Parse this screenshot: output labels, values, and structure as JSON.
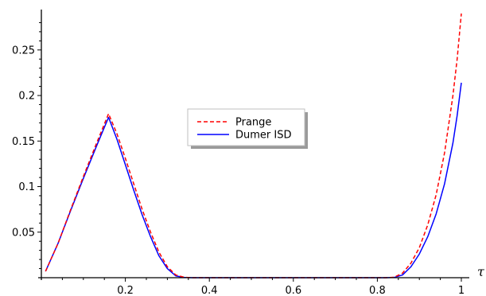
{
  "chart_data": {
    "type": "line",
    "title": "",
    "xlabel": "τ",
    "ylabel": "",
    "xlim": [
      0,
      1
    ],
    "ylim": [
      0,
      0.29
    ],
    "x_ticks": [
      0.2,
      0.4,
      0.6,
      0.8,
      1
    ],
    "x_tick_labels": [
      "0.2",
      "0.4",
      "0.6",
      "0.8",
      "1"
    ],
    "y_ticks": [
      0.05,
      0.1,
      0.15,
      0.2,
      0.25
    ],
    "y_tick_labels": [
      "0.05",
      "0.1",
      "0.15",
      "0.2",
      "0.25"
    ],
    "grid": false,
    "legend_position": "center",
    "series": [
      {
        "name": "Prange",
        "color": "#ff0000",
        "style": "dashed",
        "points": [
          [
            0.01,
            0.007
          ],
          [
            0.04,
            0.038
          ],
          [
            0.07,
            0.075
          ],
          [
            0.1,
            0.111
          ],
          [
            0.13,
            0.146
          ],
          [
            0.16,
            0.18
          ],
          [
            0.18,
            0.158
          ],
          [
            0.2,
            0.131
          ],
          [
            0.22,
            0.103
          ],
          [
            0.24,
            0.075
          ],
          [
            0.26,
            0.05
          ],
          [
            0.28,
            0.028
          ],
          [
            0.3,
            0.012
          ],
          [
            0.32,
            0.003
          ],
          [
            0.34,
            0.0005
          ],
          [
            0.36,
            0.0
          ],
          [
            0.5,
            0.0
          ],
          [
            0.7,
            0.0
          ],
          [
            0.82,
            0.0
          ],
          [
            0.84,
            0.0005
          ],
          [
            0.86,
            0.005
          ],
          [
            0.88,
            0.016
          ],
          [
            0.9,
            0.033
          ],
          [
            0.92,
            0.058
          ],
          [
            0.94,
            0.091
          ],
          [
            0.96,
            0.137
          ],
          [
            0.98,
            0.2
          ],
          [
            0.99,
            0.24
          ],
          [
            1.0,
            0.29
          ]
        ]
      },
      {
        "name": "Dumer ISD",
        "color": "#0000ff",
        "style": "solid",
        "points": [
          [
            0.01,
            0.007
          ],
          [
            0.04,
            0.038
          ],
          [
            0.07,
            0.074
          ],
          [
            0.1,
            0.109
          ],
          [
            0.13,
            0.143
          ],
          [
            0.16,
            0.176
          ],
          [
            0.18,
            0.152
          ],
          [
            0.2,
            0.124
          ],
          [
            0.22,
            0.096
          ],
          [
            0.24,
            0.069
          ],
          [
            0.26,
            0.045
          ],
          [
            0.28,
            0.024
          ],
          [
            0.3,
            0.01
          ],
          [
            0.32,
            0.002
          ],
          [
            0.34,
            0.0003
          ],
          [
            0.36,
            0.0
          ],
          [
            0.5,
            0.0
          ],
          [
            0.7,
            0.0
          ],
          [
            0.82,
            0.0
          ],
          [
            0.84,
            0.0003
          ],
          [
            0.86,
            0.003
          ],
          [
            0.88,
            0.012
          ],
          [
            0.9,
            0.026
          ],
          [
            0.92,
            0.045
          ],
          [
            0.94,
            0.07
          ],
          [
            0.96,
            0.103
          ],
          [
            0.98,
            0.148
          ],
          [
            0.99,
            0.178
          ],
          [
            1.0,
            0.214
          ]
        ]
      }
    ]
  }
}
